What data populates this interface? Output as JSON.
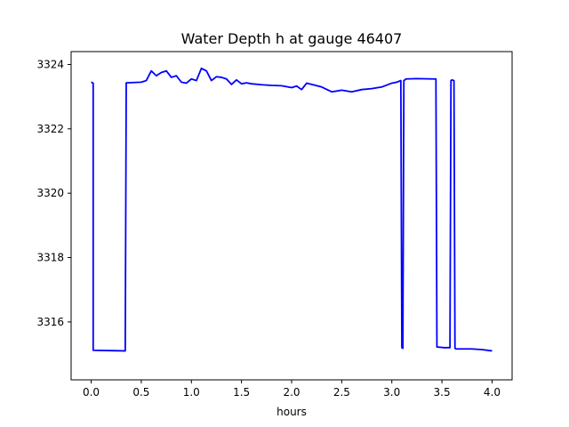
{
  "chart_data": {
    "type": "line",
    "title": "Water Depth h at gauge 46407",
    "xlabel": "hours",
    "ylabel": "",
    "xlim": [
      -0.2,
      4.2
    ],
    "ylim": [
      3314.2,
      3324.4
    ],
    "grid": false,
    "x_ticks": [
      0.0,
      0.5,
      1.0,
      1.5,
      2.0,
      2.5,
      3.0,
      3.5,
      4.0
    ],
    "x_tick_labels": [
      "0.0",
      "0.5",
      "1.0",
      "1.5",
      "2.0",
      "2.5",
      "3.0",
      "3.5",
      "4.0"
    ],
    "y_ticks": [
      3316,
      3318,
      3320,
      3322,
      3324
    ],
    "y_tick_labels": [
      "3316",
      "3318",
      "3320",
      "3322",
      "3324"
    ],
    "series": [
      {
        "color": "#0000ff",
        "x": [
          0.0,
          0.02,
          0.02,
          0.34,
          0.35,
          0.5,
          0.55,
          0.6,
          0.65,
          0.7,
          0.75,
          0.8,
          0.85,
          0.9,
          0.95,
          1.0,
          1.05,
          1.1,
          1.15,
          1.2,
          1.25,
          1.3,
          1.35,
          1.4,
          1.45,
          1.5,
          1.55,
          1.6,
          1.7,
          1.8,
          1.9,
          2.0,
          2.05,
          2.1,
          2.15,
          2.2,
          2.3,
          2.4,
          2.5,
          2.6,
          2.7,
          2.8,
          2.9,
          3.0,
          3.05,
          3.09,
          3.1,
          3.11,
          3.12,
          3.13,
          3.14,
          3.15,
          3.25,
          3.4,
          3.44,
          3.45,
          3.46,
          3.52,
          3.58,
          3.59,
          3.6,
          3.62,
          3.63,
          3.64,
          3.8,
          3.9,
          4.0
        ],
        "y": [
          3323.45,
          3323.42,
          3315.12,
          3315.1,
          3323.43,
          3323.45,
          3323.5,
          3323.8,
          3323.65,
          3323.75,
          3323.8,
          3323.6,
          3323.65,
          3323.45,
          3323.42,
          3323.55,
          3323.5,
          3323.88,
          3323.8,
          3323.5,
          3323.62,
          3323.6,
          3323.55,
          3323.38,
          3323.52,
          3323.4,
          3323.43,
          3323.4,
          3323.37,
          3323.35,
          3323.34,
          3323.28,
          3323.33,
          3323.22,
          3323.42,
          3323.38,
          3323.3,
          3323.15,
          3323.2,
          3323.15,
          3323.22,
          3323.25,
          3323.3,
          3323.42,
          3323.45,
          3323.5,
          3315.2,
          3315.18,
          3323.5,
          3323.52,
          3323.55,
          3323.55,
          3323.56,
          3323.55,
          3323.55,
          3315.22,
          3315.22,
          3315.2,
          3315.2,
          3323.5,
          3323.52,
          3323.5,
          3315.18,
          3315.16,
          3315.16,
          3315.14,
          3315.1
        ]
      }
    ]
  }
}
